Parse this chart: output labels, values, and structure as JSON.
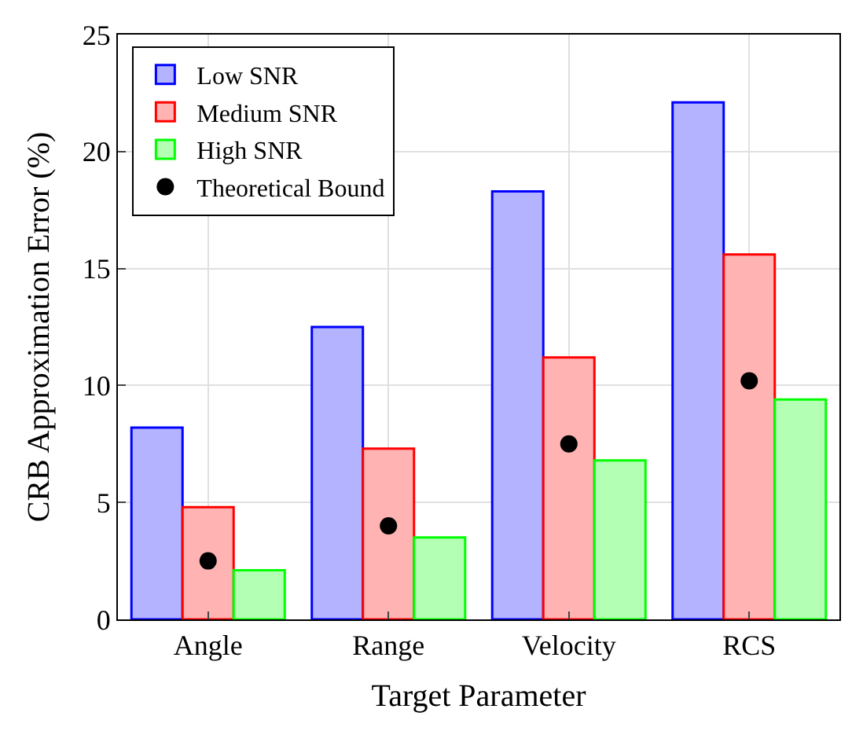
{
  "chart_data": {
    "type": "bar",
    "xlabel": "Target Parameter",
    "ylabel": "CRB Approximation Error (%)",
    "categories": [
      "Angle",
      "Range",
      "Velocity",
      "RCS"
    ],
    "series": [
      {
        "name": "Low SNR",
        "color": "#b3b3ff",
        "values": [
          8.2,
          12.5,
          18.3,
          22.1
        ]
      },
      {
        "name": "Medium SNR",
        "color": "#ffb3b3",
        "values": [
          4.8,
          7.3,
          11.2,
          15.6
        ]
      },
      {
        "name": "High SNR",
        "color": "#b3ffb3",
        "values": [
          2.1,
          3.5,
          6.8,
          9.4
        ]
      },
      {
        "name": "Theoretical Bound",
        "type": "scatter",
        "marker": "circle",
        "color": "#000000",
        "x": [
          "Angle",
          "Range",
          "Velocity",
          "RCS"
        ],
        "values": [
          2.5,
          4.0,
          7.5,
          10.2
        ]
      }
    ],
    "ylim": [
      0,
      25
    ],
    "yticks": [
      0,
      5,
      10,
      15,
      20,
      25
    ],
    "grid": true,
    "legend": "top left"
  }
}
